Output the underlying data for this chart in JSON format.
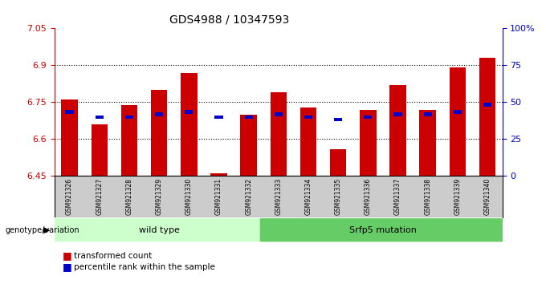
{
  "title": "GDS4988 / 10347593",
  "samples": [
    "GSM921326",
    "GSM921327",
    "GSM921328",
    "GSM921329",
    "GSM921330",
    "GSM921331",
    "GSM921332",
    "GSM921333",
    "GSM921334",
    "GSM921335",
    "GSM921336",
    "GSM921337",
    "GSM921338",
    "GSM921339",
    "GSM921340"
  ],
  "red_values": [
    6.76,
    6.66,
    6.74,
    6.8,
    6.87,
    6.46,
    6.7,
    6.79,
    6.73,
    6.56,
    6.72,
    6.82,
    6.72,
    6.89,
    6.93
  ],
  "blue_values": [
    6.71,
    6.69,
    6.69,
    6.7,
    6.71,
    6.69,
    6.69,
    6.7,
    6.69,
    6.68,
    6.69,
    6.7,
    6.7,
    6.71,
    6.74
  ],
  "ymin": 6.45,
  "ymax": 7.05,
  "y_ticks_left": [
    6.45,
    6.6,
    6.75,
    6.9,
    7.05
  ],
  "y_ticks_right": [
    0,
    25,
    50,
    75,
    100
  ],
  "bar_color": "#cc0000",
  "blue_color": "#0000cc",
  "wild_type_label": "wild type",
  "mutation_label": "Srfp5 mutation",
  "genotype_label": "genotype/variation",
  "legend_red": "transformed count",
  "legend_blue": "percentile rank within the sample",
  "wild_type_color": "#ccffcc",
  "mutation_color": "#66cc66",
  "tick_area_color": "#cccccc",
  "bar_width": 0.55
}
